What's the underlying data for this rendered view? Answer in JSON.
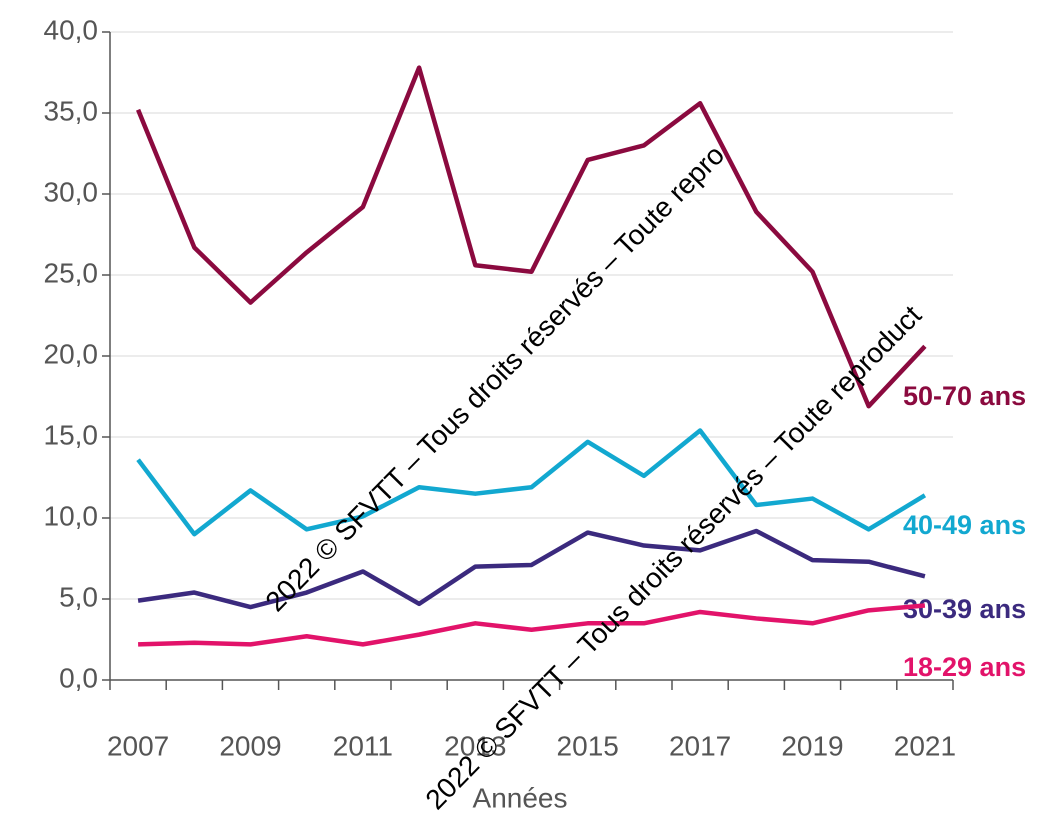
{
  "chart_data": {
    "type": "line",
    "x_label": "Années",
    "annotations": [
      "2022 © SFVTT – Tous droits réservés – Toute repro",
      "2022 © SFVTT – Tous droits réservés – Toute reproduct"
    ],
    "categories": [
      "2007",
      null,
      "2009",
      null,
      "2011",
      null,
      "2013",
      null,
      "2015",
      null,
      "2017",
      null,
      "2019",
      null,
      "2021"
    ],
    "series": [
      {
        "name": "50-70 ans",
        "color": "#8b0a3f",
        "values": [
          35.2,
          26.7,
          23.3,
          26.4,
          29.2,
          37.8,
          25.6,
          25.2,
          32.1,
          33.0,
          35.6,
          28.9,
          25.2,
          16.9,
          20.6
        ]
      },
      {
        "name": "40-49 ans",
        "color": "#12a8d0",
        "values": [
          13.6,
          9.0,
          11.7,
          9.3,
          10.1,
          11.9,
          11.5,
          11.9,
          14.7,
          12.6,
          15.4,
          10.8,
          11.2,
          9.3,
          11.4
        ]
      },
      {
        "name": "30-39 ans",
        "color": "#3b2a7e",
        "values": [
          4.9,
          5.4,
          4.5,
          5.4,
          6.7,
          4.7,
          7.0,
          7.1,
          9.1,
          8.3,
          8.0,
          9.2,
          7.4,
          7.3,
          6.4
        ]
      },
      {
        "name": "18-29 ans",
        "color": "#e2136a",
        "values": [
          2.2,
          2.3,
          2.2,
          2.7,
          2.2,
          2.8,
          3.5,
          3.1,
          3.5,
          3.5,
          4.2,
          3.8,
          3.5,
          4.3,
          4.6
        ]
      }
    ],
    "ylim": [
      0,
      40
    ],
    "yticks": [
      {
        "value": 0,
        "label": "0,0"
      },
      {
        "value": 5,
        "label": "5,0"
      },
      {
        "value": 10,
        "label": "10,0"
      },
      {
        "value": 15,
        "label": "15,0"
      },
      {
        "value": 20,
        "label": "20,0"
      },
      {
        "value": 25,
        "label": "25,0"
      },
      {
        "value": 30,
        "label": "30,0"
      },
      {
        "value": 35,
        "label": "35,0"
      },
      {
        "value": 40,
        "label": "40,0"
      }
    ],
    "grid": true
  }
}
